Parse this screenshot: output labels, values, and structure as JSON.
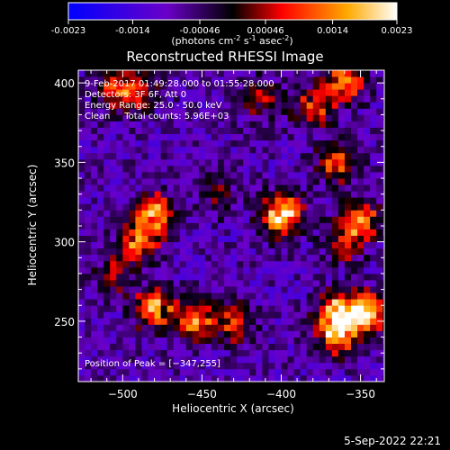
{
  "colorbar": {
    "ticks": [
      "-0.0023",
      "-0.0014",
      "-0.00046",
      "0.00046",
      "0.0014",
      "0.0023"
    ],
    "range": [
      -0.0023,
      0.0023
    ],
    "label_parts": [
      "(photons cm",
      "-2",
      " s",
      "-1",
      " asec",
      "-2",
      ")"
    ],
    "colors": [
      "#0000ff",
      "#6a00c8",
      "#000000",
      "#ff0000",
      "#ffaa00",
      "#ffffff"
    ]
  },
  "chart_data": {
    "type": "heatmap",
    "title": "Reconstructed RHESSI Image",
    "xlabel": "Heliocentric X (arcsec)",
    "ylabel": "Heliocentric Y (arcsec)",
    "xlim": [
      -528,
      -335
    ],
    "ylim": [
      212,
      408
    ],
    "xticks": [
      -500,
      -450,
      -400,
      -350
    ],
    "yticks": [
      250,
      300,
      350,
      400
    ],
    "xtick_labels": [
      "−500",
      "−450",
      "−400",
      "−350"
    ],
    "ytick_labels": [
      "250",
      "300",
      "350",
      "400"
    ],
    "annotations": [
      "9-Feb-2017 01:49:28.000 to 01:55:28.000",
      "Detectors: 3F 6F, Att 0",
      "Energy Range: 25.0 - 50.0 keV",
      "Clean     Total counts: 5.96E+03"
    ],
    "peak_label": "Position of Peak = [−347,255]",
    "peak": [
      -347,
      255
    ],
    "bright_sources": [
      {
        "x": -400,
        "y": 318,
        "peak": 0.0023
      },
      {
        "x": -480,
        "y": 318,
        "peak": 0.0019
      },
      {
        "x": -490,
        "y": 300,
        "peak": 0.0015
      },
      {
        "x": -480,
        "y": 258,
        "peak": 0.0016
      },
      {
        "x": -455,
        "y": 250,
        "peak": 0.0014
      },
      {
        "x": -430,
        "y": 250,
        "peak": 0.0012
      },
      {
        "x": -365,
        "y": 255,
        "peak": 0.0018
      },
      {
        "x": -347,
        "y": 255,
        "peak": 0.0021
      },
      {
        "x": -365,
        "y": 240,
        "peak": 0.0014
      },
      {
        "x": -350,
        "y": 315,
        "peak": 0.0015
      },
      {
        "x": -365,
        "y": 350,
        "peak": 0.0012
      },
      {
        "x": -360,
        "y": 400,
        "peak": 0.0015
      },
      {
        "x": -380,
        "y": 385,
        "peak": 0.0012
      },
      {
        "x": -415,
        "y": 390,
        "peak": 0.0009
      },
      {
        "x": -490,
        "y": 395,
        "peak": 0.001
      },
      {
        "x": -505,
        "y": 395,
        "peak": 0.001
      },
      {
        "x": -360,
        "y": 300,
        "peak": 0.001
      },
      {
        "x": -505,
        "y": 280,
        "peak": 0.0009
      },
      {
        "x": -440,
        "y": 330,
        "peak": 0.0006
      }
    ],
    "background_level": -0.00085
  },
  "footer": {
    "timestamp": "5-Sep-2022 22:21"
  }
}
